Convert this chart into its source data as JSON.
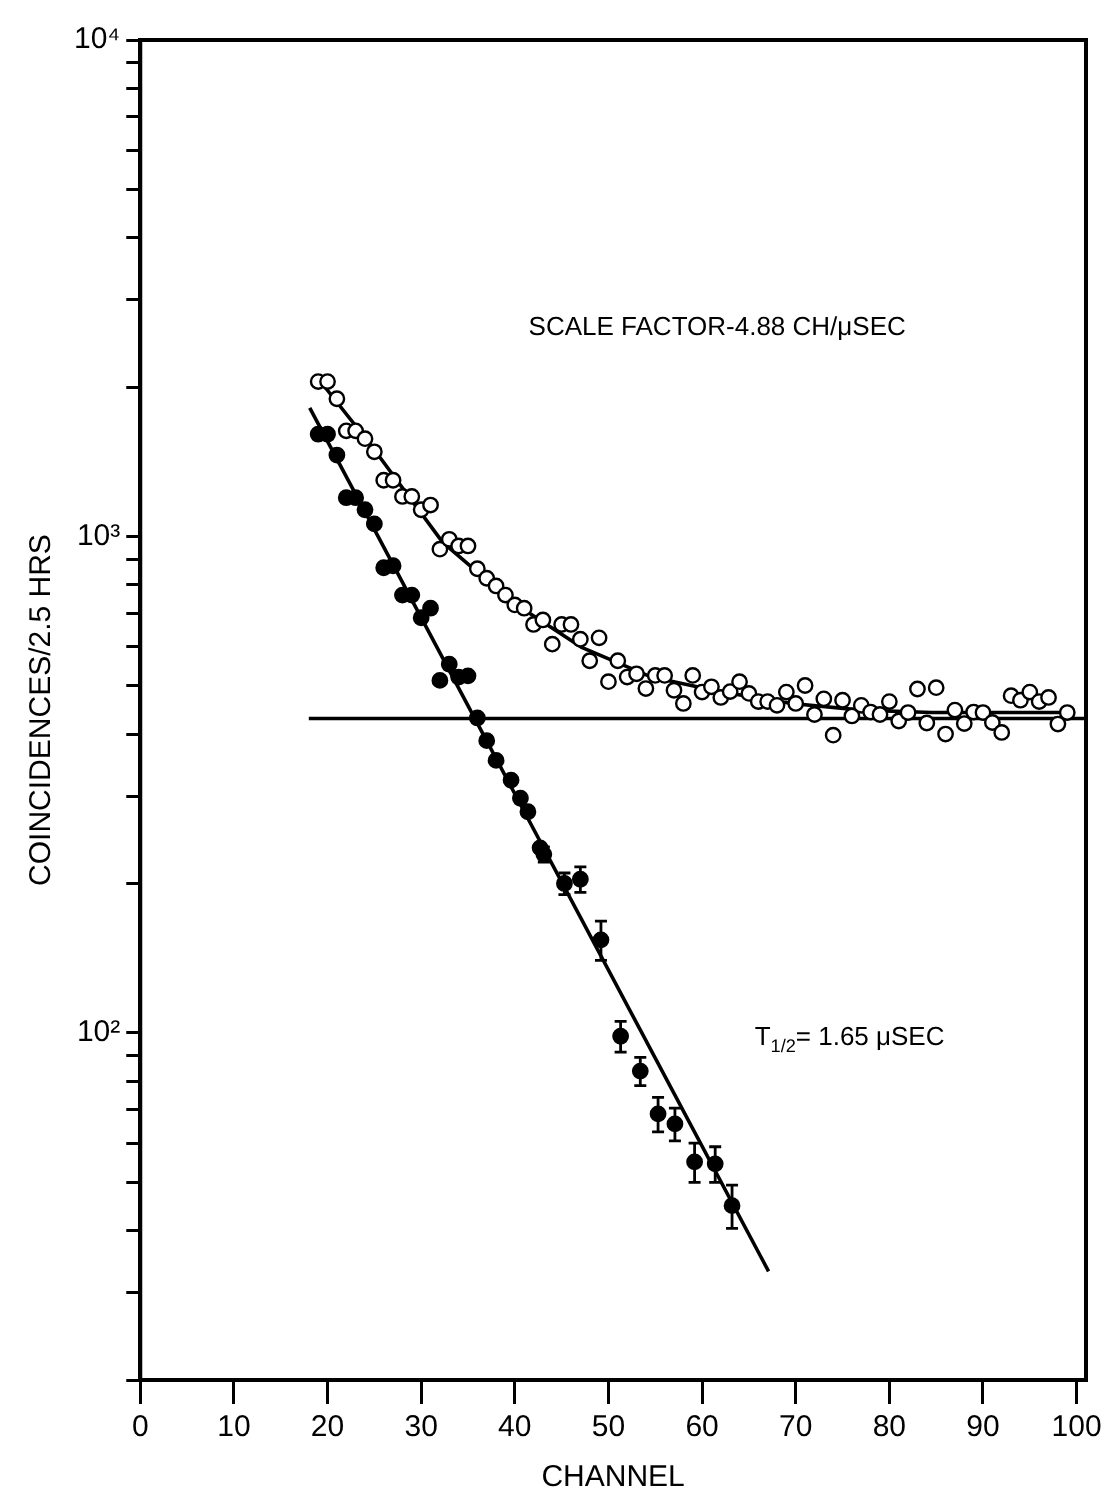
{
  "chart_data": {
    "type": "scatter",
    "xlabel": "CHANNEL",
    "ylabel": "COINCIDENCES/2.5 HRS",
    "log": "y",
    "grid": false,
    "legend": false,
    "xlim": [
      0,
      101
    ],
    "ylim": [
      20,
      10000
    ],
    "xticks": [
      0,
      10,
      20,
      30,
      40,
      50,
      60,
      70,
      80,
      90,
      100
    ],
    "yticks": [
      {
        "value": 20,
        "label": null
      },
      {
        "value": 30,
        "label": null
      },
      {
        "value": 40,
        "label": null
      },
      {
        "value": 50,
        "label": null
      },
      {
        "value": 60,
        "label": null
      },
      {
        "value": 70,
        "label": null
      },
      {
        "value": 80,
        "label": null
      },
      {
        "value": 90,
        "label": null
      },
      {
        "value": 100,
        "label": "10²"
      },
      {
        "value": 200,
        "label": null
      },
      {
        "value": 300,
        "label": null
      },
      {
        "value": 400,
        "label": null
      },
      {
        "value": 500,
        "label": null
      },
      {
        "value": 600,
        "label": null
      },
      {
        "value": 700,
        "label": null
      },
      {
        "value": 800,
        "label": null
      },
      {
        "value": 900,
        "label": null
      },
      {
        "value": 1000,
        "label": "10³"
      },
      {
        "value": 2000,
        "label": null
      },
      {
        "value": 3000,
        "label": null
      },
      {
        "value": 4000,
        "label": null
      },
      {
        "value": 5000,
        "label": null
      },
      {
        "value": 6000,
        "label": null
      },
      {
        "value": 7000,
        "label": null
      },
      {
        "value": 8000,
        "label": null
      },
      {
        "value": 9000,
        "label": null
      },
      {
        "value": 10000,
        "label": "10⁴"
      }
    ],
    "annotations": [
      "SCALE FACTOR-4.88 CH/μSEC",
      "T$_{1/2}$= 1.65 μSEC"
    ],
    "series": [
      {
        "marker": "circle",
        "color": "#ffffff",
        "x": [
          19,
          20,
          21,
          22,
          23,
          24,
          25,
          26,
          27,
          28,
          29,
          30,
          31,
          32,
          33,
          34,
          35,
          36,
          37,
          38,
          39,
          40,
          41,
          42,
          43,
          44,
          45,
          46,
          47,
          48,
          49,
          50,
          51,
          52,
          53,
          54,
          55,
          56,
          57,
          58,
          59,
          60,
          61,
          62,
          63,
          64,
          65,
          66,
          67,
          68,
          69,
          70,
          71,
          72,
          73,
          74,
          75,
          76,
          77,
          78,
          79,
          80,
          81,
          82,
          83,
          84,
          85,
          86,
          87,
          88,
          89,
          90,
          91,
          92,
          93,
          94,
          95,
          96,
          97,
          98,
          99
        ],
        "values": [
          2051,
          2051,
          1894,
          1632,
          1632,
          1574,
          1481,
          1298,
          1298,
          1204,
          1204,
          1132,
          1157,
          943,
          987,
          957,
          957,
          861,
          824,
          795,
          762,
          728,
          717,
          665,
          679,
          607,
          665,
          665,
          621,
          562,
          625,
          510,
          562,
          521,
          529,
          494,
          525,
          525,
          490,
          461,
          525,
          486,
          498,
          474,
          487,
          510,
          483,
          465,
          465,
          457,
          486,
          461,
          501,
          438,
          471,
          398,
          468,
          435,
          457,
          443,
          438,
          465,
          425,
          442,
          493,
          421,
          496,
          400,
          447,
          420,
          443,
          442,
          422,
          403,
          478,
          468,
          486,
          465,
          474,
          419,
          442
        ]
      },
      {
        "marker": "circle",
        "color": "#000000",
        "x": [
          19,
          20,
          21,
          22,
          23,
          24,
          25,
          26,
          27,
          28,
          29,
          30,
          31,
          32,
          33,
          34,
          35,
          36,
          37,
          38,
          39.6,
          40.6,
          41.4,
          42.7,
          43.1,
          45.3,
          47,
          49.2,
          51.3,
          53.4,
          55.3,
          57.1,
          59.2,
          61.4,
          63.2
        ],
        "values": [
          1607,
          1607,
          1459,
          1197,
          1197,
          1132,
          1060,
          865,
          873,
          762,
          762,
          686,
          717,
          513,
          553,
          521,
          524,
          431,
          388,
          354,
          323,
          297,
          279,
          236,
          229,
          200,
          204,
          154,
          98.5,
          83.8,
          68.7,
          65.6,
          55,
          54.5,
          44.9
        ],
        "errors": [
          null,
          null,
          null,
          null,
          null,
          null,
          null,
          null,
          null,
          null,
          null,
          null,
          null,
          null,
          null,
          null,
          null,
          null,
          null,
          null,
          null,
          null,
          null,
          null,
          8,
          10,
          12,
          14,
          7,
          5.5,
          5.5,
          5,
          5,
          4.5,
          4.5
        ]
      },
      {
        "type": "line",
        "marker": "none",
        "color": "#000000",
        "x": [
          19.8,
          24.8,
          32.3,
          39.7,
          47.2,
          54.6,
          62.1,
          69.6,
          77,
          84.5,
          99.4
        ],
        "values": [
          1991,
          1513,
          973,
          739,
          597,
          521,
          486,
          461,
          447,
          442,
          442
        ]
      },
      {
        "type": "line",
        "marker": "none",
        "color": "#000000",
        "x": [
          18,
          101
        ],
        "values": [
          430,
          430
        ]
      },
      {
        "type": "line",
        "marker": "none",
        "color": "#000000",
        "x": [
          18.1,
          67.1
        ],
        "values": [
          1816,
          33.1
        ]
      }
    ]
  }
}
